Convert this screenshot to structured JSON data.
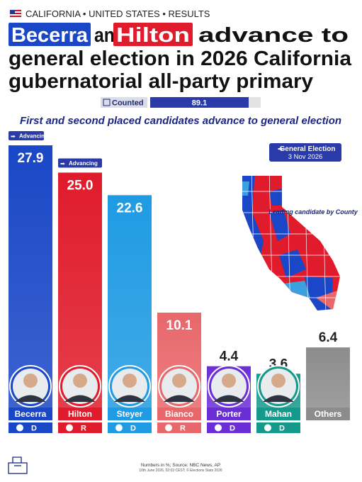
{
  "chart_data": {
    "type": "bar",
    "kicker": "CALIFORNIA • UNITED STATES • RESULTS",
    "title": {
      "highlight_1": "Becerra",
      "text_1": "and",
      "highlight_2": "Hilton",
      "text_2": "advance to",
      "line_2": "general election in 2026 California",
      "line_3": "gubernatorial all-party primary"
    },
    "counted": {
      "label": "Counted",
      "value": 89.1,
      "xlim": [
        0,
        100
      ]
    },
    "subtitle": "First and second placed candidates advance to general election",
    "advancing_label": "Advancing",
    "advancing": [
      true,
      true,
      false,
      false,
      false,
      false,
      false
    ],
    "election_box": {
      "label": "General Election",
      "date": "3 Nov 2026"
    },
    "map_caption": "Leading candidate by County",
    "categories": [
      "Becerra",
      "Hilton",
      "Steyer",
      "Bianco",
      "Porter",
      "Mahan",
      "Others"
    ],
    "values": [
      27.9,
      25.0,
      22.6,
      10.1,
      4.4,
      3.6,
      6.4
    ],
    "value_labels": [
      "27.9",
      "25.0",
      "22.6",
      "10.1",
      "4.4",
      "3.6",
      "6.4"
    ],
    "parties": [
      "D",
      "R",
      "D",
      "R",
      "D",
      "D",
      null
    ],
    "colors": [
      "#1a47c7",
      "#e01b2b",
      "#1f9be3",
      "#e8676b",
      "#6b2ed6",
      "#15998a",
      "#8c8c8c"
    ],
    "footer": {
      "source": "Numbers in %; Source: NBC News, AP",
      "timestamp": "10th June 2026, 02:03 CEST; © Elections Stats 2026"
    }
  }
}
